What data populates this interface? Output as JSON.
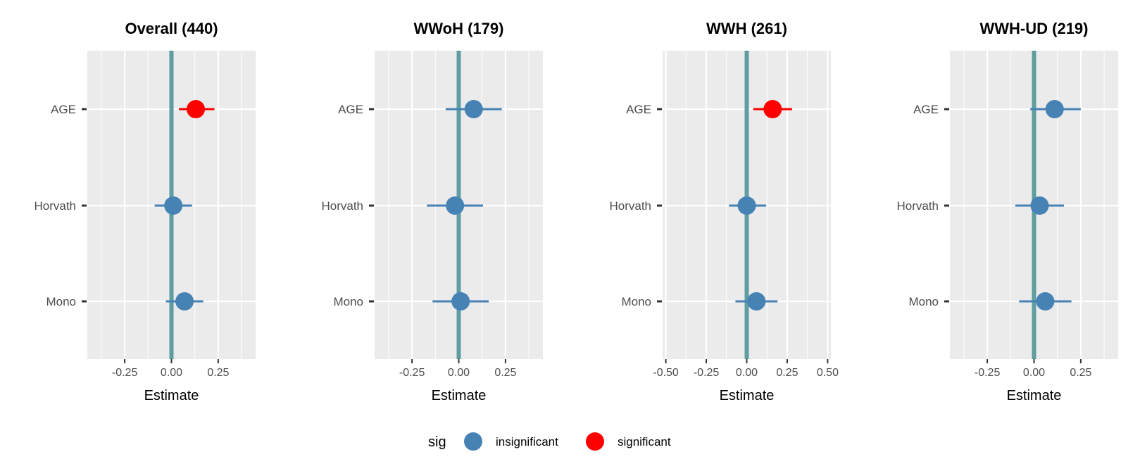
{
  "chart_data": [
    {
      "type": "scatter",
      "title": "Overall (440)",
      "xlabel": "Estimate",
      "categories": [
        "AGE",
        "Horvath",
        "Mono"
      ],
      "xlim": [
        -0.45,
        0.45
      ],
      "xticks": [
        -0.25,
        0.0,
        0.25
      ],
      "xtick_labels": [
        "-0.25",
        "0.00",
        "0.25"
      ],
      "points": [
        {
          "category": "AGE",
          "estimate": 0.13,
          "lower": 0.04,
          "upper": 0.23,
          "sig": "significant"
        },
        {
          "category": "Horvath",
          "estimate": 0.01,
          "lower": -0.09,
          "upper": 0.11,
          "sig": "insignificant"
        },
        {
          "category": "Mono",
          "estimate": 0.07,
          "lower": -0.03,
          "upper": 0.17,
          "sig": "insignificant"
        }
      ],
      "reference_line": 0
    },
    {
      "type": "scatter",
      "title": "WWoH (179)",
      "xlabel": "Estimate",
      "categories": [
        "AGE",
        "Horvath",
        "Mono"
      ],
      "xlim": [
        -0.45,
        0.45
      ],
      "xticks": [
        -0.25,
        0.0,
        0.25
      ],
      "xtick_labels": [
        "-0.25",
        "0.00",
        "0.25"
      ],
      "points": [
        {
          "category": "AGE",
          "estimate": 0.08,
          "lower": -0.07,
          "upper": 0.23,
          "sig": "insignificant"
        },
        {
          "category": "Horvath",
          "estimate": -0.02,
          "lower": -0.17,
          "upper": 0.13,
          "sig": "insignificant"
        },
        {
          "category": "Mono",
          "estimate": 0.01,
          "lower": -0.14,
          "upper": 0.16,
          "sig": "insignificant"
        }
      ],
      "reference_line": 0
    },
    {
      "type": "scatter",
      "title": "WWH (261)",
      "xlabel": "Estimate",
      "categories": [
        "AGE",
        "Horvath",
        "Mono"
      ],
      "xlim": [
        -0.52,
        0.52
      ],
      "xticks": [
        -0.5,
        -0.25,
        0.0,
        0.25,
        0.5
      ],
      "xtick_labels": [
        "-0.50",
        "-0.25",
        "0.00",
        "0.25",
        "0.50"
      ],
      "points": [
        {
          "category": "AGE",
          "estimate": 0.16,
          "lower": 0.04,
          "upper": 0.28,
          "sig": "significant"
        },
        {
          "category": "Horvath",
          "estimate": 0.0,
          "lower": -0.11,
          "upper": 0.12,
          "sig": "insignificant"
        },
        {
          "category": "Mono",
          "estimate": 0.06,
          "lower": -0.07,
          "upper": 0.19,
          "sig": "insignificant"
        }
      ],
      "reference_line": 0
    },
    {
      "type": "scatter",
      "title": "WWH-UD (219)",
      "xlabel": "Estimate",
      "categories": [
        "AGE",
        "Horvath",
        "Mono"
      ],
      "xlim": [
        -0.45,
        0.45
      ],
      "xticks": [
        -0.25,
        0.0,
        0.25
      ],
      "xtick_labels": [
        "-0.25",
        "0.00",
        "0.25"
      ],
      "points": [
        {
          "category": "AGE",
          "estimate": 0.11,
          "lower": -0.02,
          "upper": 0.25,
          "sig": "insignificant"
        },
        {
          "category": "Horvath",
          "estimate": 0.03,
          "lower": -0.1,
          "upper": 0.16,
          "sig": "insignificant"
        },
        {
          "category": "Mono",
          "estimate": 0.06,
          "lower": -0.08,
          "upper": 0.2,
          "sig": "insignificant"
        }
      ],
      "reference_line": 0
    }
  ],
  "legend": {
    "title": "sig",
    "placement": "bottom",
    "items": [
      {
        "label": "insignificant",
        "color": "#4682B4"
      },
      {
        "label": "significant",
        "color": "#FF0000"
      }
    ]
  },
  "colors": {
    "panel_background": "#EBEBEB",
    "grid": "#FFFFFF",
    "reference_line": "#5F9EA0",
    "insignificant": "#4682B4",
    "significant": "#FF0000"
  }
}
